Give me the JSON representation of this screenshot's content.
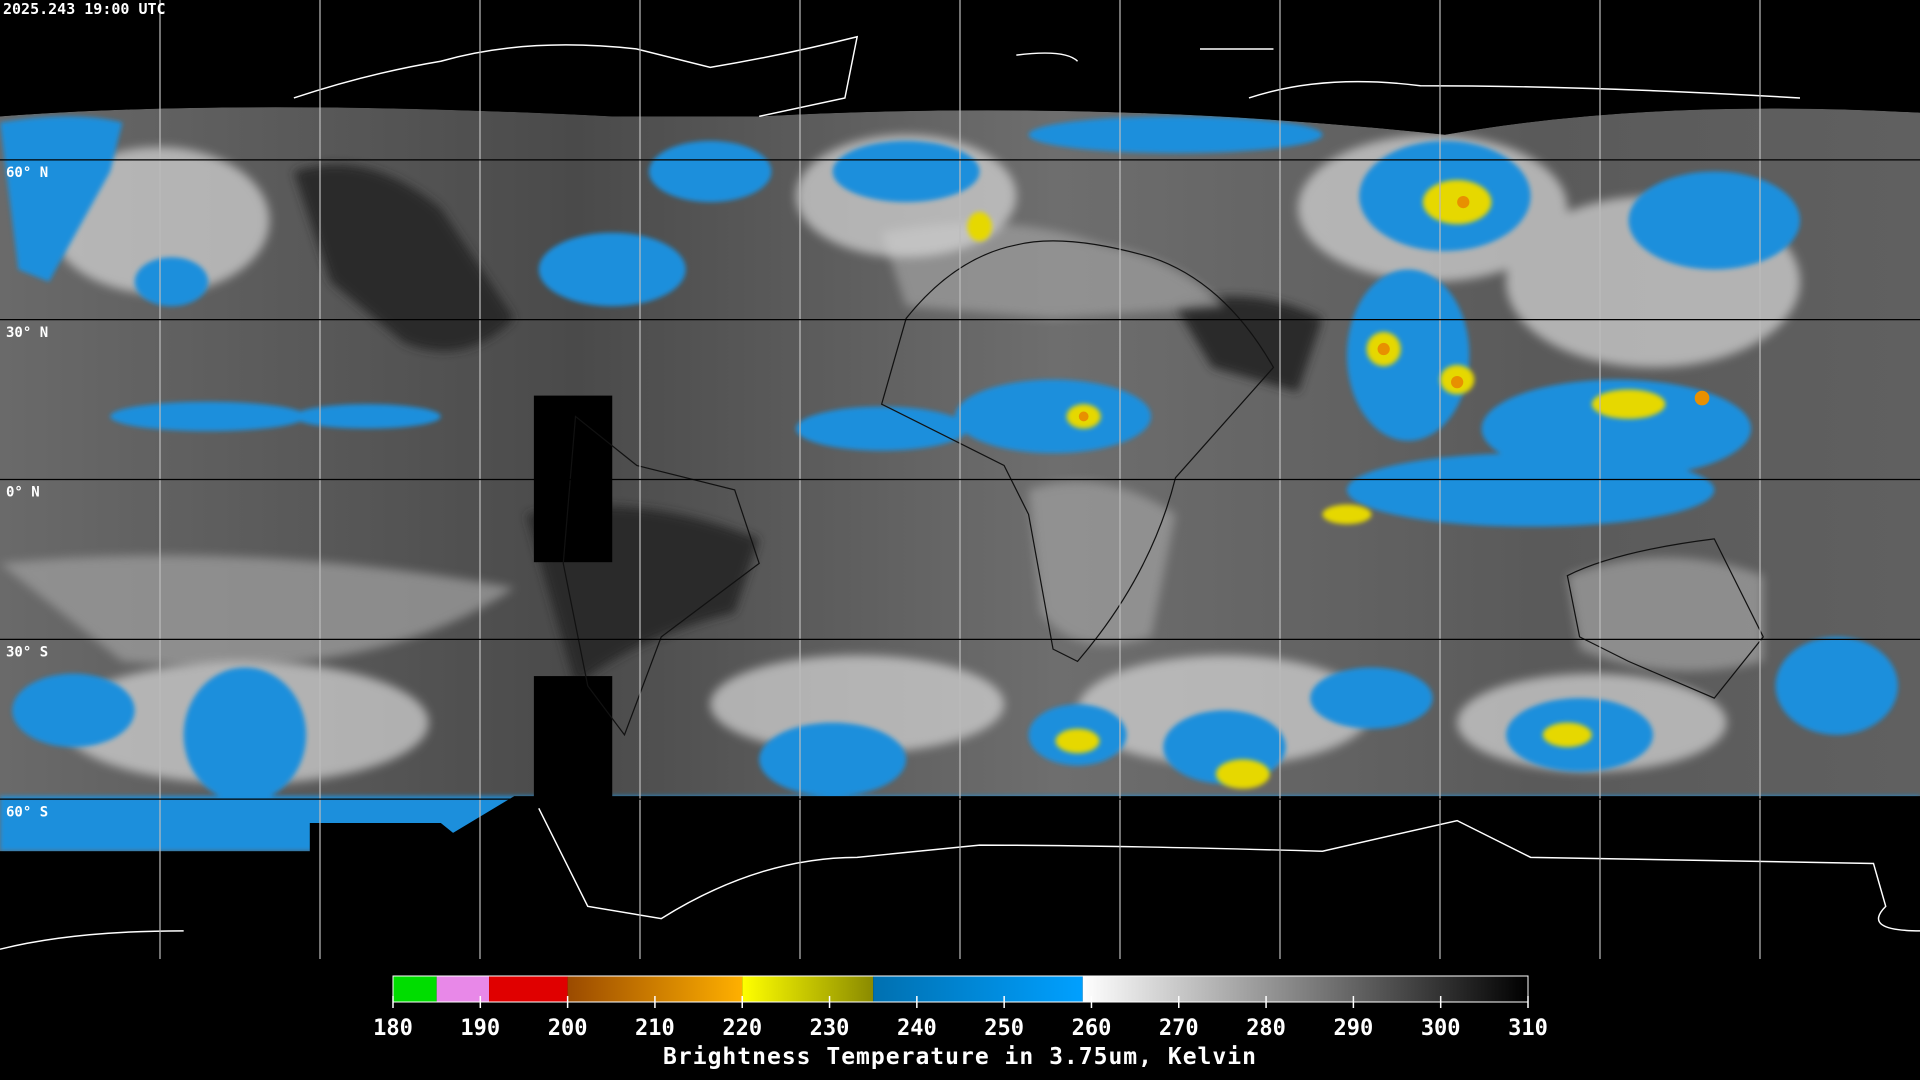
{
  "header": {
    "title": "2025.243 19:00 UTC"
  },
  "map": {
    "lat_labels": [
      "60° N",
      "30° N",
      "0° N",
      "30° S",
      "60° S"
    ]
  },
  "colorbar": {
    "range": [
      180,
      310
    ],
    "ticks": [
      180,
      190,
      200,
      210,
      220,
      230,
      240,
      250,
      260,
      270,
      280,
      290,
      300,
      310
    ],
    "segments": [
      {
        "from": 180,
        "to": 185,
        "colors": [
          "#00dd00",
          "#00dd00"
        ]
      },
      {
        "from": 185,
        "to": 191,
        "colors": [
          "#e888e8",
          "#e888e8"
        ]
      },
      {
        "from": 191,
        "to": 200,
        "colors": [
          "#e00000",
          "#e00000"
        ]
      },
      {
        "from": 200,
        "to": 220,
        "colors": [
          "#9a4a00",
          "#ffb000"
        ]
      },
      {
        "from": 220,
        "to": 235,
        "colors": [
          "#ffff00",
          "#8a8a00"
        ]
      },
      {
        "from": 235,
        "to": 259,
        "colors": [
          "#0070b0",
          "#00a0ff"
        ]
      },
      {
        "from": 259,
        "to": 310,
        "colors": [
          "#ffffff",
          "#000000"
        ]
      }
    ],
    "label": "Brightness Temperature in 3.75um, Kelvin"
  }
}
